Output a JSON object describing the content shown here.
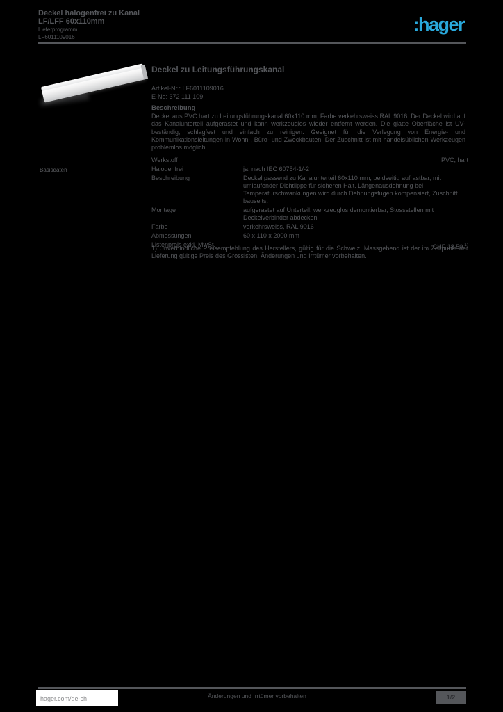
{
  "colors": {
    "background": "#000000",
    "text_gray": "#54565A",
    "logo_cyan": "#29A9DC",
    "footer_box_white": "#FFFFFF"
  },
  "header": {
    "title_line1": "Deckel halogenfrei zu Kanal",
    "title_line2": "LF/LFF 60x110mm",
    "subline1": "Lieferprogramm",
    "subline2": "LF6011109016",
    "logo_text": ":hager"
  },
  "product": {
    "photo_caption": "product-photo",
    "title": "Deckel zu Leitungsführungskanal",
    "ref_line1": "Artikel-Nr.: LF6011109016",
    "ref_line2": "E-No: 372 111 109",
    "description_heading": "Beschreibung",
    "description_text": "Deckel aus PVC hart zu Leitungsführungskanal 60x110 mm, Farbe verkehrsweiss RAL 9016. Der Deckel wird auf das Kanalunterteil aufgerastet und kann werkzeuglos wieder entfernt werden. Die glatte Oberfläche ist UV-beständig, schlagfest und einfach zu reinigen. Geeignet für die Verlegung von Energie- und Kommunikationsleitungen in Wohn-, Büro- und Zweckbauten. Der Zuschnitt ist mit handelsüblichen Werkzeugen problemlos möglich."
  },
  "section_label": "Basisdaten",
  "table": {
    "rows": [
      {
        "key": "Werkstoff",
        "value": "PVC, hart"
      },
      {
        "key": "Halogenfrei",
        "value": "ja, nach IEC 60754-1/-2"
      },
      {
        "key": "Beschreibung",
        "value": "Deckel passend zu Kanalunterteil 60x110 mm, beidseitig aufrastbar, mit umlaufender Dichtlippe für sicheren Halt. Längenausdehnung bei Temperaturschwankungen wird durch Dehnungsfugen kompensiert, Zuschnitt bauseits."
      },
      {
        "key": "Montage",
        "value": "aufgerastet auf Unterteil, werkzeuglos demontierbar, Stossstellen mit Deckelverbinder abdecken"
      },
      {
        "key": "Farbe",
        "value": "verkehrsweiss, RAL 9016"
      },
      {
        "key": "Abmessungen",
        "value": "60 x 110 x 2000 mm"
      }
    ],
    "price_row": {
      "key": "Listenpreis exkl. MwSt.",
      "value": "CHF 18.50",
      "footnote_ref": "1)"
    },
    "footnote": "1) Unverbindliche Preisempfehlung des Herstellers, gültig für die Schweiz. Massgebend ist der im Zeitpunkt der Lieferung gültige Preis des Grossisten. Änderungen und Irrtümer vorbehalten."
  },
  "footer": {
    "website": "hager.com/de-ch",
    "center_note": "Änderungen und Irrtümer vorbehalten",
    "page_indicator": "1/2"
  }
}
